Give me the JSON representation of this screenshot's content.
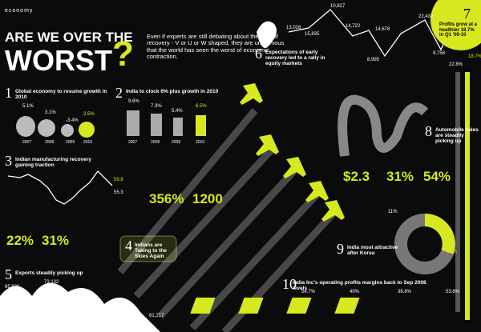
{
  "header": {
    "section": "economy",
    "title1": "ARE WE OVER THE",
    "title2": "WORST",
    "mark": "?",
    "intro": "Even if experts are still debating about the kind of recovery - V or U or W shaped, they are unanimous that the world has seen the worst of economic contraction."
  },
  "s1": {
    "num": "1",
    "title": "Global economy to resume growth in 2010",
    "values": [
      "5.1%",
      "3.1%",
      "-3.4%",
      "2.5%"
    ],
    "years": [
      "2007",
      "2008",
      "2009",
      "2010"
    ]
  },
  "s2": {
    "num": "2",
    "title": "India to clock 6% plus growth in 2010",
    "values": [
      "9.6%",
      "7.3%",
      "5.4%",
      "6.5%"
    ],
    "years": [
      "2007",
      "2008",
      "2009",
      "2010"
    ]
  },
  "s3": {
    "num": "3",
    "title": "Indian manufacturing recovery gaining traction",
    "values": [
      "59.8",
      "55.3"
    ]
  },
  "stats_a": [
    "356%",
    "1200"
  ],
  "s4": {
    "num": "4",
    "title": "Indians are Taking to the Skies Again"
  },
  "s5": {
    "num": "5",
    "title": "Exports steadily picking up",
    "values": [
      "65,630",
      "73,132",
      "50,289",
      "61,217"
    ]
  },
  "stats_c": [
    "22%",
    "31%"
  ],
  "s6": {
    "num": "6",
    "title": "Expectations of early recovery led to a rally in equity markets",
    "values": [
      "13,026",
      "10,827",
      "15,835",
      "14,722",
      "8,995",
      "14,678",
      "22,432",
      "9,758"
    ]
  },
  "s7": {
    "num": "7",
    "title": "Profits grow at a healthier 18.7% in Q1 '09-10",
    "values": [
      "22.8%",
      "18.7%"
    ]
  },
  "s8": {
    "num": "8",
    "title": "Automobile sales are steadily picking up"
  },
  "stats_b": [
    "$2.3",
    "31%",
    "54%"
  ],
  "s9": {
    "num": "9",
    "title": "India most attractive after Korea",
    "values": [
      "11%",
      "21%"
    ]
  },
  "s10": {
    "num": "10",
    "title": "India Inc's operating profits margins back to Sep 2008 levels",
    "values": [
      "54.7%",
      "40%",
      "36.8%",
      "53.6%"
    ]
  }
}
